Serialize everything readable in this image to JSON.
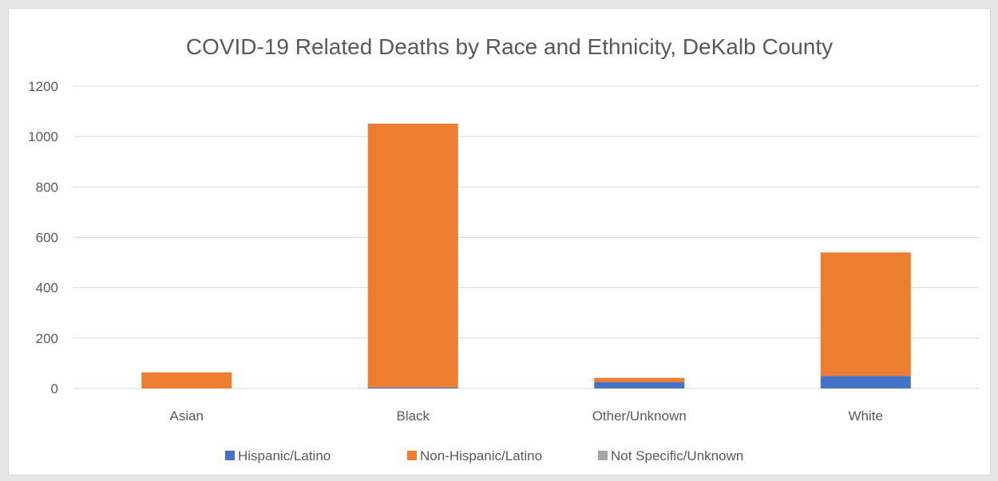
{
  "chart_data": {
    "type": "bar",
    "stacked": true,
    "title": "COVID-19 Related Deaths by Race and Ethnicity, DeKalb County",
    "xlabel": "",
    "ylabel": "",
    "categories": [
      "Asian",
      "Black",
      "Other/Unknown",
      "White"
    ],
    "series": [
      {
        "name": "Hispanic/Latino",
        "color": "#4472c4",
        "values": [
          0,
          4,
          25,
          50
        ]
      },
      {
        "name": "Non-Hispanic/Latino",
        "color": "#ed7d31",
        "values": [
          64,
          1047,
          17,
          490
        ]
      },
      {
        "name": "Not Specific/Unknown",
        "color": "#a5a5a5",
        "values": [
          0,
          0,
          0,
          0
        ]
      }
    ],
    "ylim": [
      0,
      1200
    ],
    "yticks": [
      0,
      200,
      400,
      600,
      800,
      1000,
      1200
    ],
    "grid": true,
    "legend_position": "bottom"
  }
}
